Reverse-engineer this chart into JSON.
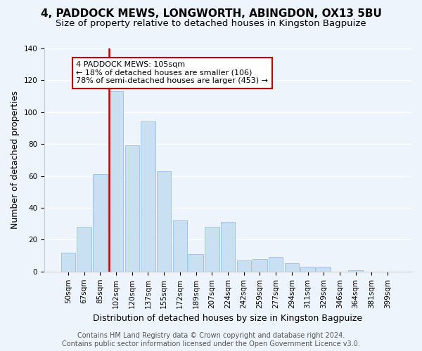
{
  "title": "4, PADDOCK MEWS, LONGWORTH, ABINGDON, OX13 5BU",
  "subtitle": "Size of property relative to detached houses in Kingston Bagpuize",
  "xlabel": "Distribution of detached houses by size in Kingston Bagpuize",
  "ylabel": "Number of detached properties",
  "bar_labels": [
    "50sqm",
    "67sqm",
    "85sqm",
    "102sqm",
    "120sqm",
    "137sqm",
    "155sqm",
    "172sqm",
    "189sqm",
    "207sqm",
    "224sqm",
    "242sqm",
    "259sqm",
    "277sqm",
    "294sqm",
    "311sqm",
    "329sqm",
    "346sqm",
    "364sqm",
    "381sqm",
    "399sqm"
  ],
  "bar_values": [
    12,
    28,
    61,
    113,
    79,
    94,
    63,
    32,
    11,
    28,
    31,
    7,
    8,
    9,
    5,
    3,
    3,
    0,
    1,
    0,
    0
  ],
  "bar_color": "#c9dff2",
  "bar_edge_color": "#a0c4e8",
  "vline_color": "#cc0000",
  "annotation_title": "4 PADDOCK MEWS: 105sqm",
  "annotation_line1": "← 18% of detached houses are smaller (106)",
  "annotation_line2": "78% of semi-detached houses are larger (453) →",
  "annotation_box_color": "#ffffff",
  "annotation_box_edgecolor": "#cc0000",
  "ylim": [
    0,
    140
  ],
  "yticks": [
    0,
    20,
    40,
    60,
    80,
    100,
    120,
    140
  ],
  "footer1": "Contains HM Land Registry data © Crown copyright and database right 2024.",
  "footer2": "Contains public sector information licensed under the Open Government Licence v3.0.",
  "bg_color": "#eef4fb",
  "title_fontsize": 11,
  "subtitle_fontsize": 9.5,
  "axis_fontsize": 9,
  "tick_fontsize": 7.5,
  "footer_fontsize": 7
}
